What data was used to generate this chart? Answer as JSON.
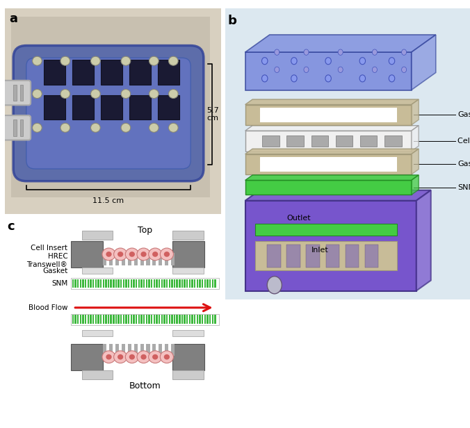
{
  "panel_a_label": "a",
  "panel_b_label": "b",
  "panel_c_label": "c",
  "dim_57": "5.7\ncm",
  "dim_115": "11.5 cm",
  "b_labels": [
    "Gasket",
    "Cell Insert",
    "Gasket",
    "SNM"
  ],
  "outlet_label": "Outlet",
  "inlet_label": "Inlet",
  "c_top_label": "Top",
  "c_bottom_label": "Bottom",
  "bg_b_color": "#dce8f0",
  "green_snm": "#3cb83c",
  "cell_pink": "#f4c0c0",
  "cell_dark_pink": "#d06060",
  "cell_edge": "#c87878",
  "gray_dark": "#808080",
  "gray_mid": "#aaaaaa",
  "gray_light": "#cccccc",
  "gray_xlight": "#dddddd",
  "gasket_color": "#c8bc98",
  "gasket_edge": "#a09878",
  "arrow_red": "#dd1111",
  "photo_bg": "#c8c0b0",
  "device_blue": "#5566bb",
  "device_blue_edge": "#334499",
  "device_purple": "#7755cc",
  "device_purple_edge": "#443388",
  "slot_dark": "#2a2a44",
  "screw_color": "#bbbbaa"
}
